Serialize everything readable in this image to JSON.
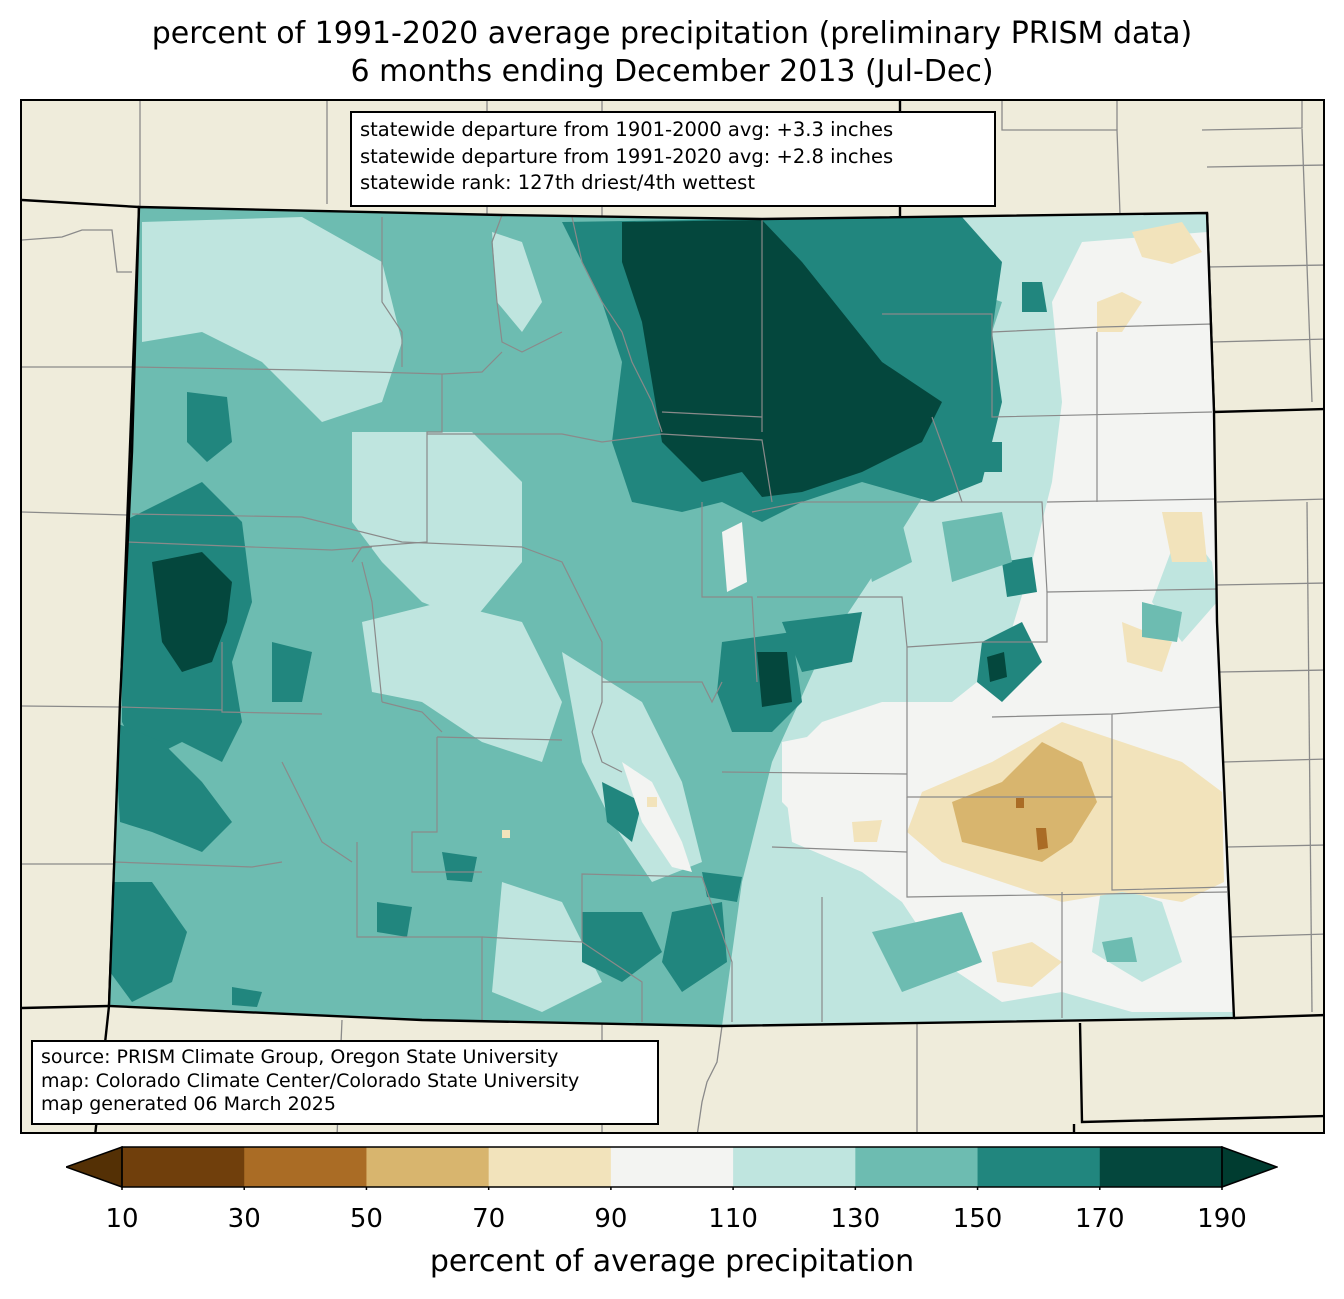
{
  "title": {
    "line1": "percent of 1991-2020 average precipitation (preliminary PRISM data)",
    "line2": "6 months ending December 2013 (Jul-Dec)"
  },
  "stats": {
    "line1": "statewide departure from 1901-2000 avg: +3.3 inches",
    "line2": "statewide departure from 1991-2020 avg: +2.8 inches",
    "line3": "statewide rank: 127th driest/4th wettest"
  },
  "source": {
    "line1": "source: PRISM Climate Group, Oregon State University",
    "line2": "map: Colorado Climate Center/Colorado State University",
    "line3": "map generated 06 March 2025"
  },
  "colorbar": {
    "label": "percent of average precipitation",
    "ticks": [
      "10",
      "30",
      "50",
      "70",
      "90",
      "110",
      "130",
      "150",
      "170",
      "190"
    ],
    "colors": [
      "#703f0c",
      "#aa6c25",
      "#d8b56e",
      "#f2e3bb",
      "#f3f4f2",
      "#bfe5df",
      "#6dbcb1",
      "#21867e",
      "#04473d"
    ],
    "under_color": "#543005",
    "over_color": "#003c30"
  },
  "map": {
    "land_color": "#efecdb"
  }
}
